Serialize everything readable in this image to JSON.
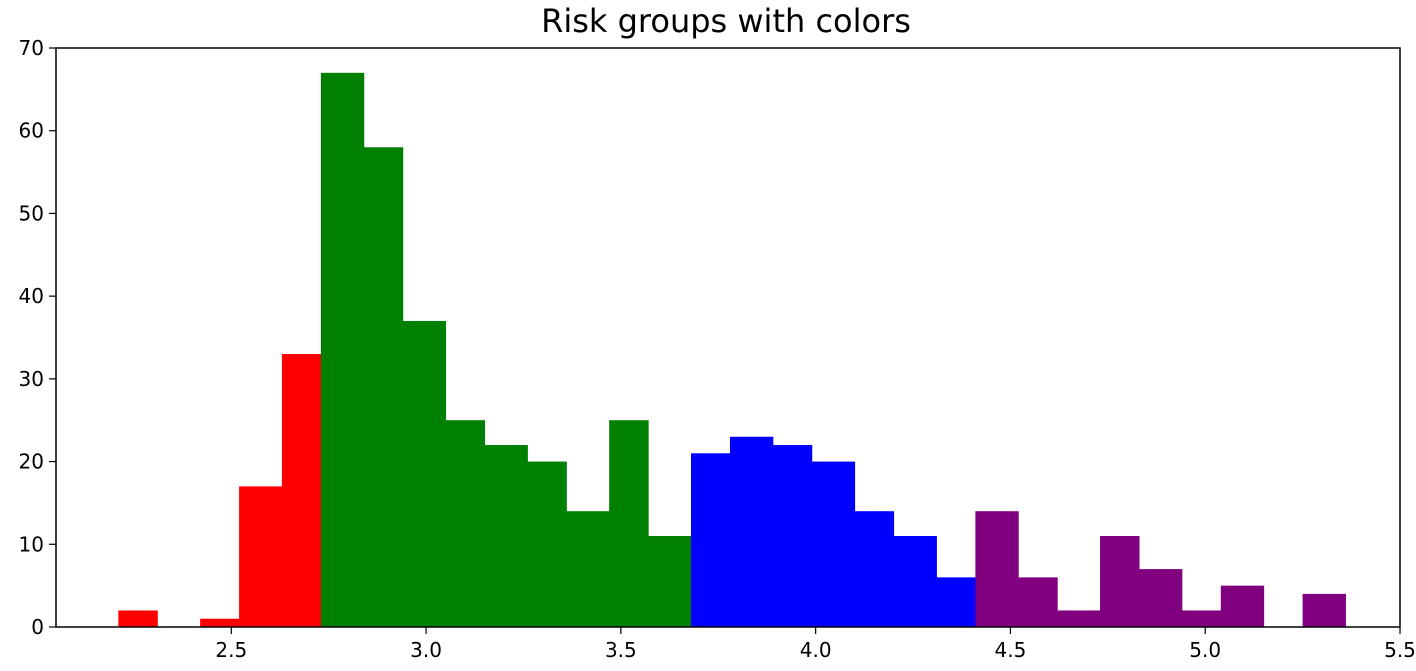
{
  "chart_data": {
    "type": "bar",
    "title": "Risk groups with colors",
    "xlabel": "",
    "ylabel": "",
    "xlim": [
      2.05,
      5.5
    ],
    "ylim": [
      0,
      70
    ],
    "xticks": [
      2.5,
      3.0,
      3.5,
      4.0,
      4.5,
      5.0,
      5.5
    ],
    "xtick_labels": [
      "2.5",
      "3.0",
      "3.5",
      "4.0",
      "4.5",
      "5.0",
      "5.5"
    ],
    "yticks": [
      0,
      10,
      20,
      30,
      40,
      50,
      60,
      70
    ],
    "ytick_labels": [
      "0",
      "10",
      "20",
      "30",
      "40",
      "50",
      "60",
      "70"
    ],
    "grid": false,
    "legend": "none",
    "bin_width": 0.105,
    "series": [
      {
        "color": "#ff0000",
        "bins": [
          {
            "x0": 2.21,
            "x1": 2.31,
            "value": 2
          },
          {
            "x0": 2.42,
            "x1": 2.52,
            "value": 1
          },
          {
            "x0": 2.52,
            "x1": 2.63,
            "value": 17
          },
          {
            "x0": 2.63,
            "x1": 2.73,
            "value": 33
          }
        ]
      },
      {
        "color": "#008000",
        "bins": [
          {
            "x0": 2.73,
            "x1": 2.84,
            "value": 67
          },
          {
            "x0": 2.84,
            "x1": 2.94,
            "value": 58
          },
          {
            "x0": 2.94,
            "x1": 3.05,
            "value": 37
          },
          {
            "x0": 3.05,
            "x1": 3.15,
            "value": 25
          },
          {
            "x0": 3.15,
            "x1": 3.26,
            "value": 22
          },
          {
            "x0": 3.26,
            "x1": 3.36,
            "value": 20
          },
          {
            "x0": 3.36,
            "x1": 3.47,
            "value": 14
          },
          {
            "x0": 3.47,
            "x1": 3.57,
            "value": 25
          },
          {
            "x0": 3.57,
            "x1": 3.68,
            "value": 11
          }
        ]
      },
      {
        "color": "#0000ff",
        "bins": [
          {
            "x0": 3.68,
            "x1": 3.78,
            "value": 21
          },
          {
            "x0": 3.78,
            "x1": 3.89,
            "value": 23
          },
          {
            "x0": 3.89,
            "x1": 3.99,
            "value": 22
          },
          {
            "x0": 3.99,
            "x1": 4.1,
            "value": 20
          },
          {
            "x0": 4.1,
            "x1": 4.2,
            "value": 14
          },
          {
            "x0": 4.2,
            "x1": 4.31,
            "value": 11
          },
          {
            "x0": 4.31,
            "x1": 4.41,
            "value": 6
          }
        ]
      },
      {
        "color": "#800080",
        "bins": [
          {
            "x0": 4.41,
            "x1": 4.52,
            "value": 14
          },
          {
            "x0": 4.52,
            "x1": 4.62,
            "value": 6
          },
          {
            "x0": 4.62,
            "x1": 4.73,
            "value": 2
          },
          {
            "x0": 4.73,
            "x1": 4.83,
            "value": 11
          },
          {
            "x0": 4.83,
            "x1": 4.94,
            "value": 7
          },
          {
            "x0": 4.94,
            "x1": 5.04,
            "value": 2
          },
          {
            "x0": 5.04,
            "x1": 5.15,
            "value": 5
          },
          {
            "x0": 5.25,
            "x1": 5.36,
            "value": 4
          }
        ]
      }
    ]
  }
}
